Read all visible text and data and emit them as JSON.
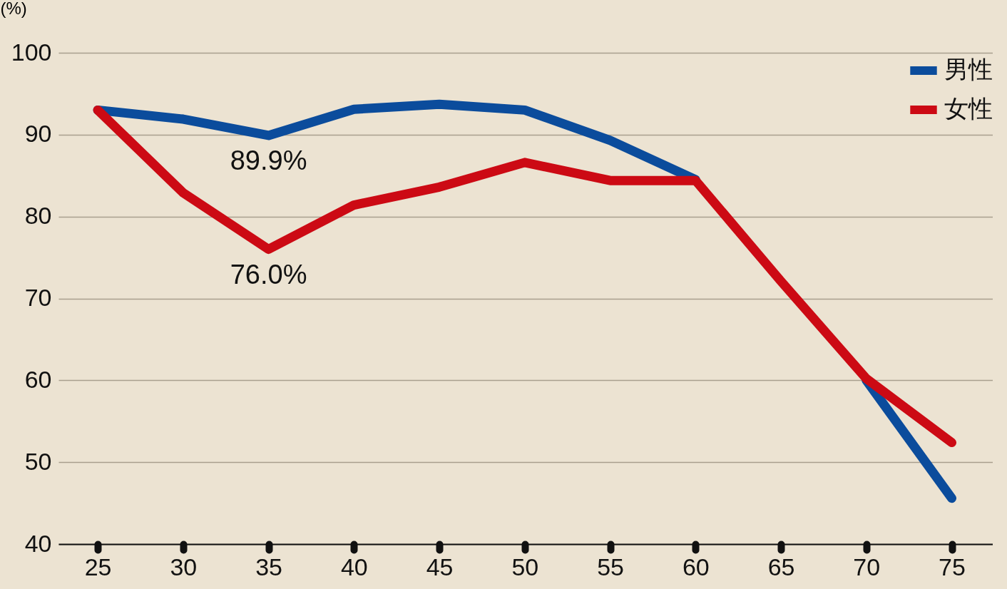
{
  "chart_data": {
    "type": "line",
    "ylabel": "(%)",
    "x": [
      25,
      30,
      35,
      40,
      45,
      50,
      55,
      60,
      65,
      70,
      75
    ],
    "series": [
      {
        "name": "男性",
        "color": "#0b4c9c",
        "values": [
          93.0,
          91.9,
          89.9,
          93.1,
          93.7,
          93.0,
          89.3,
          84.5,
          null,
          60.0,
          45.6
        ]
      },
      {
        "name": "女性",
        "color": "#cc0a14",
        "values": [
          93.0,
          82.9,
          76.0,
          81.4,
          83.6,
          86.6,
          84.4,
          84.4,
          72.1,
          60.2,
          52.4
        ]
      }
    ],
    "annotations": [
      {
        "text": "89.9%",
        "x": 35,
        "y": 89.9
      },
      {
        "text": "76.0%",
        "x": 35,
        "y": 76.0
      }
    ],
    "xlim": [
      22.7,
      77.4
    ],
    "xticks": [
      25,
      30,
      35,
      40,
      45,
      50,
      55,
      60,
      65,
      70,
      75
    ],
    "ylim": [
      40,
      100
    ],
    "yticks": [
      40,
      50,
      60,
      70,
      80,
      90,
      100
    ],
    "grid": "y",
    "legend": "top right",
    "marker": "none",
    "line_style": "solid"
  }
}
